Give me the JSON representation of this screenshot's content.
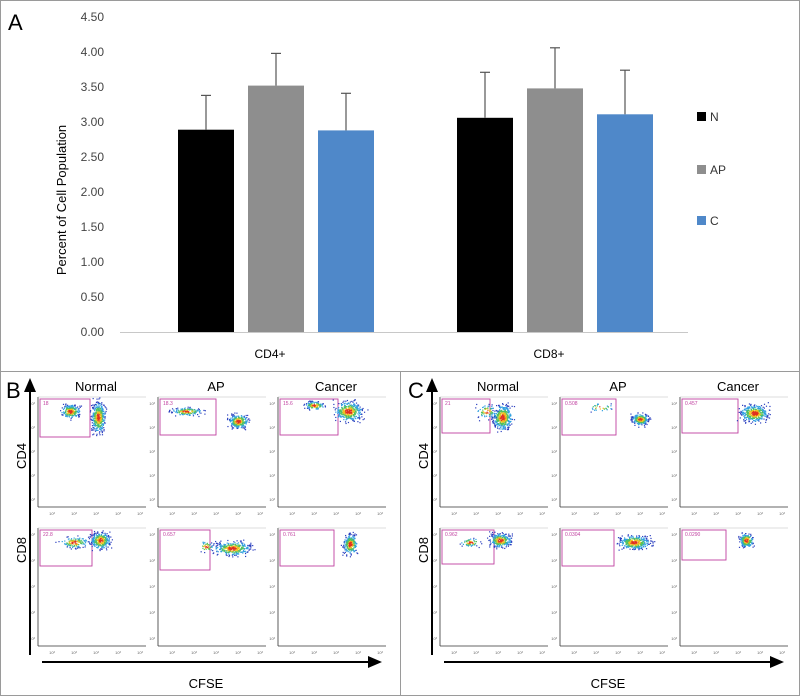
{
  "panels": {
    "A": "A",
    "B": "B",
    "C": "C"
  },
  "chart_data": {
    "type": "bar",
    "categories": [
      "CD4+",
      "CD8+"
    ],
    "ylabel": "Percent of  Cell Population",
    "ylim": [
      0,
      4.5
    ],
    "yticks": [
      "0.00",
      "0.50",
      "1.00",
      "1.50",
      "2.00",
      "2.50",
      "3.00",
      "3.50",
      "4.00",
      "4.50"
    ],
    "legend_position": "right",
    "series": [
      {
        "name": "N",
        "color": "#000000",
        "values": [
          2.89,
          3.06
        ],
        "errors": [
          0.49,
          0.65
        ]
      },
      {
        "name": "AP",
        "color": "#8e8e8e",
        "values": [
          3.52,
          3.48
        ],
        "errors": [
          0.46,
          0.58
        ]
      },
      {
        "name": "C",
        "color": "#4f88c9",
        "values": [
          2.88,
          3.11
        ],
        "errors": [
          0.53,
          0.63
        ]
      }
    ]
  },
  "flow_panels": {
    "B": {
      "columns": [
        "Normal",
        "AP",
        "Cancer"
      ],
      "rows": [
        "CD4",
        "CD8"
      ],
      "xaxis": "CFSE",
      "gate_values": [
        [
          "18",
          "18.3",
          "15.6"
        ],
        [
          "22.8",
          "0.657",
          "0.761"
        ]
      ]
    },
    "C": {
      "columns": [
        "Normal",
        "AP",
        "Cancer"
      ],
      "rows": [
        "CD4",
        "CD8"
      ],
      "xaxis": "CFSE",
      "gate_values": [
        [
          "21",
          "0.508",
          "0.457"
        ],
        [
          "0.962",
          "0.0304",
          "0.0290"
        ]
      ]
    }
  }
}
